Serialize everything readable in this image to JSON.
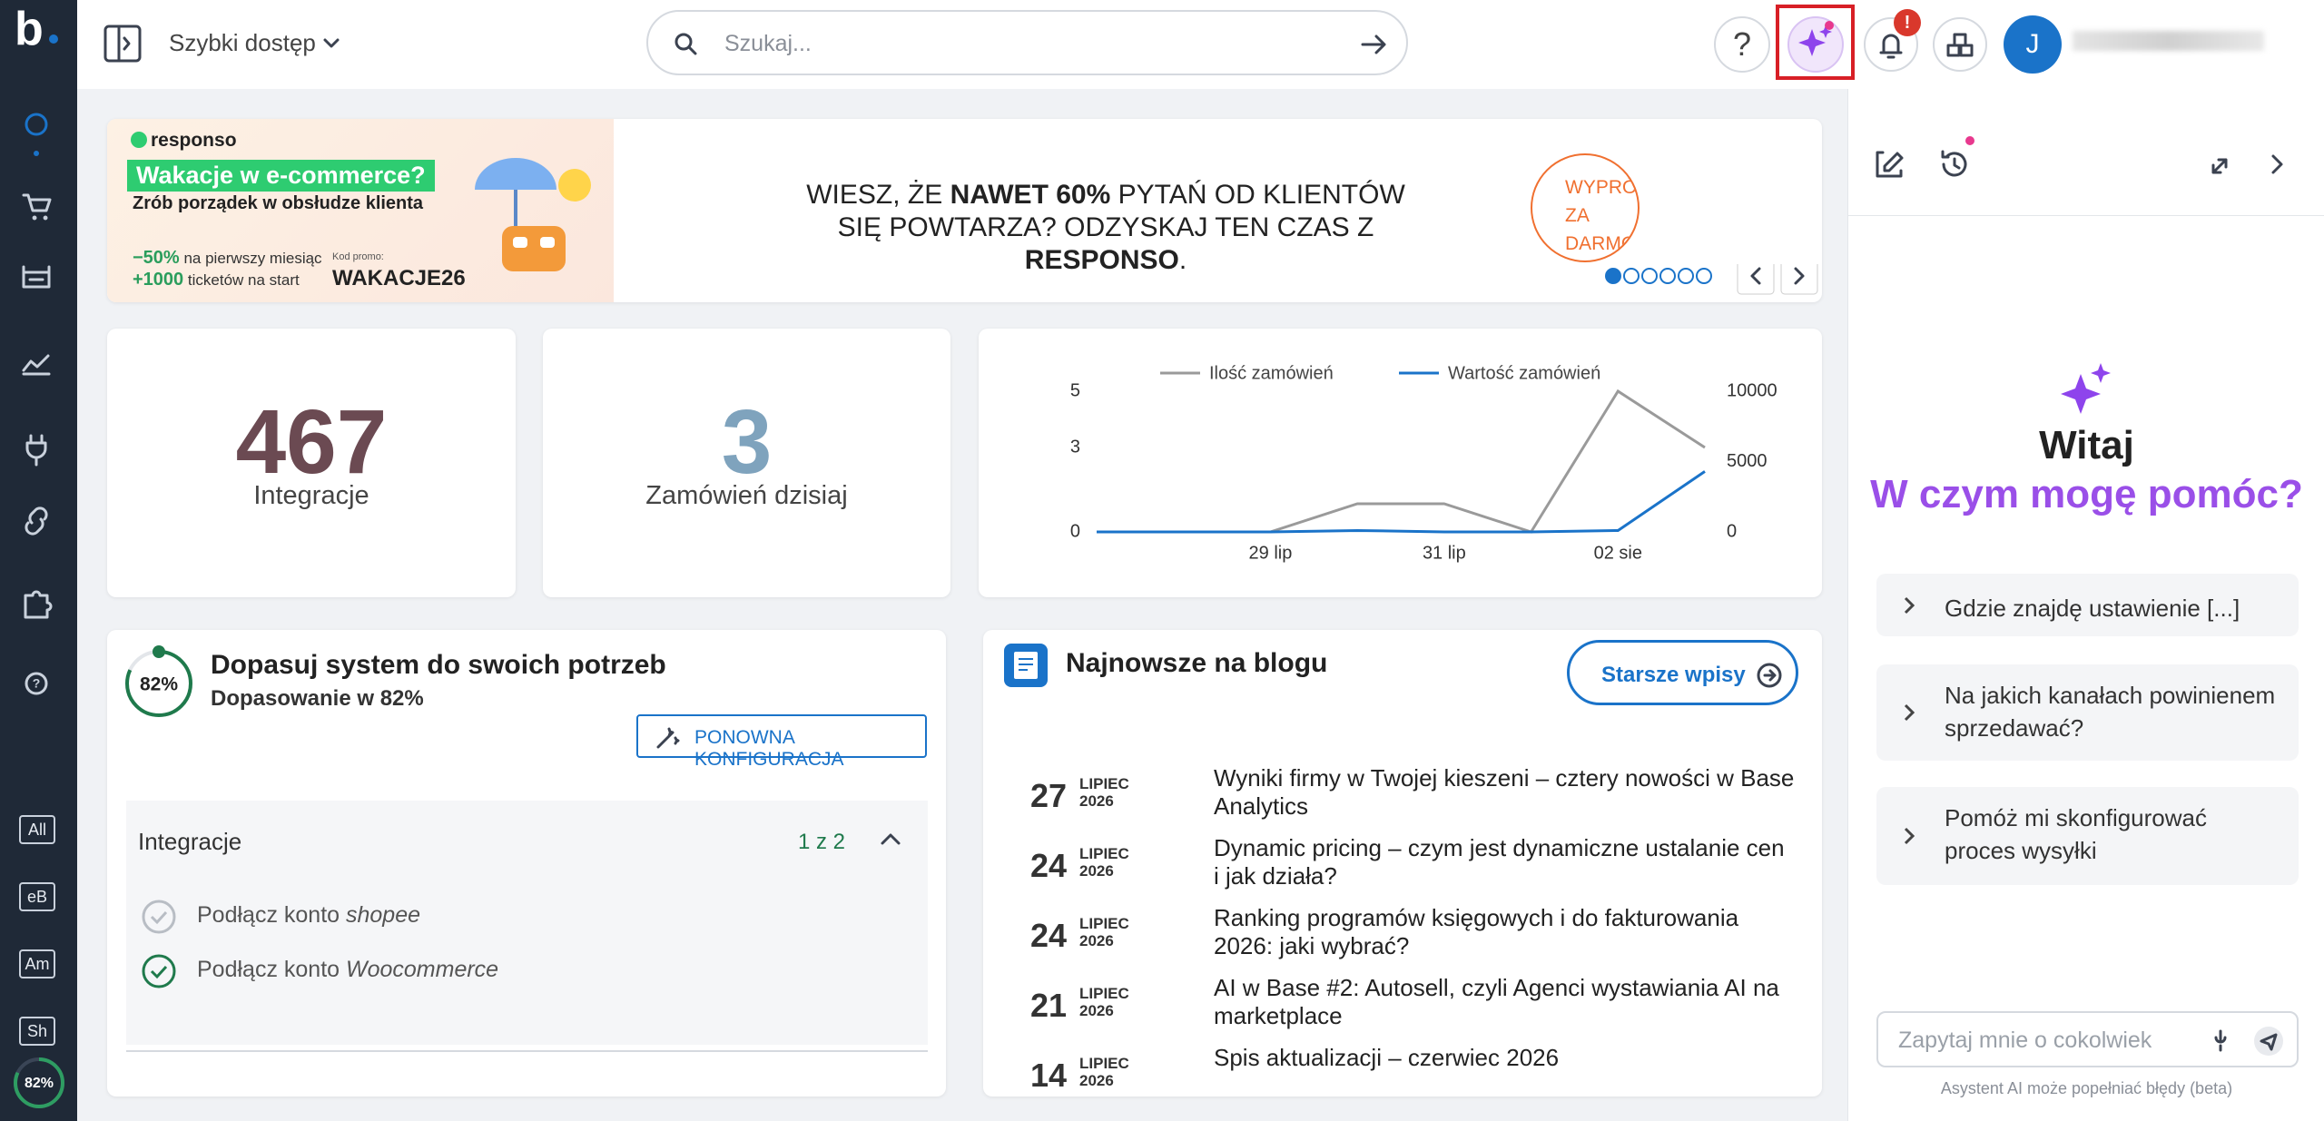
{
  "sidebar": {
    "logo": "b",
    "shortcuts": [
      "All",
      "eB",
      "Am",
      "Sh"
    ],
    "progress": "82%"
  },
  "topbar": {
    "quick_access": "Szybki dostęp",
    "search_placeholder": "Szukaj...",
    "help": "?",
    "notification_badge": "!",
    "user_initial": "J"
  },
  "banner": {
    "brand": "responso",
    "headline": "Wakacje w e-commerce?",
    "subheadline": "Zrób porządek w obsłudze klienta",
    "offer1_value": "−50%",
    "offer1_text": "na pierwszy miesiąc",
    "offer2_value": "+1000",
    "offer2_text": "ticketów na start",
    "promo_label": "Kod promo:",
    "promo_code": "WAKACJE26",
    "message": [
      {
        "text": "WIESZ, ŻE ",
        "bold": false
      },
      {
        "text": "NAWET 60%",
        "bold": true
      },
      {
        "text": " PYTAŃ OD KLIENTÓW SIĘ POWTARZA? ODZYSKAJ TEN CZAS Z ",
        "bold": false
      },
      {
        "text": "RESPONSO",
        "bold": true
      },
      {
        "text": ".",
        "bold": false
      }
    ],
    "cta": "WYPRÓBUJ ZA DARMO"
  },
  "stats": [
    {
      "value": 467,
      "label": "Integracje",
      "color": "#6b4a52"
    },
    {
      "value": 3,
      "label": "Zamówień dzisiaj",
      "color": "#7fa3bd"
    }
  ],
  "orders_chart": {
    "type": "line",
    "categories": [
      null,
      null,
      "29 lip",
      null,
      "31 lip",
      null,
      "02 sie",
      null
    ],
    "series": [
      {
        "name": "Ilość zamówień",
        "color": "#9a9a9a",
        "values": [
          0,
          0,
          0,
          1,
          1,
          0,
          5,
          3
        ]
      },
      {
        "name": "Wartość zamówień",
        "color": "#1a73c9",
        "axis": "y2",
        "values": [
          0,
          0,
          0,
          100,
          0,
          0,
          100,
          4300
        ]
      }
    ],
    "ylim": [
      0,
      5
    ],
    "yticks": [
      0,
      3,
      5
    ],
    "y2lim": [
      0,
      10000
    ],
    "y2ticks": [
      0,
      5000,
      10000
    ],
    "grid": false
  },
  "onboarding": {
    "progress": "82%",
    "title": "Dopasuj system do swoich potrzeb",
    "subtitle": "Dopasowanie w 82%",
    "button": "PONOWNA KONFIGURACJA",
    "section": "Integracje",
    "section_count": "1 z 2",
    "items": [
      {
        "prefix": "Podłącz konto ",
        "name": "shopee",
        "done": false
      },
      {
        "prefix": "Podłącz konto ",
        "name": "Woocommerce",
        "done": true
      }
    ]
  },
  "blog": {
    "title": "Najnowsze na blogu",
    "button": "Starsze wpisy",
    "posts": [
      {
        "day": 27,
        "month": "LIPIEC",
        "year": "2026",
        "title": "Wyniki firmy w Twojej kieszeni – cztery nowości w Base Analytics"
      },
      {
        "day": 24,
        "month": "LIPIEC",
        "year": "2026",
        "title": "Dynamic pricing – czym jest dynamiczne ustalanie cen i jak działa?"
      },
      {
        "day": 24,
        "month": "LIPIEC",
        "year": "2026",
        "title": "Ranking programów księgowych i do fakturowania 2026: jaki wybrać?"
      },
      {
        "day": 21,
        "month": "LIPIEC",
        "year": "2026",
        "title": "AI w Base #2: Autosell, czyli Agenci wystawiania AI na marketplace"
      },
      {
        "day": 14,
        "month": "LIPIEC",
        "year": "2026",
        "title": "Spis aktualizacji – czerwiec 2026"
      }
    ]
  },
  "assistant": {
    "greeting": "Witaj",
    "question": "W czym mogę pomóc?",
    "suggestions": [
      "Gdzie znajdę ustawienie [...]",
      "Na jakich kanałach powinienem sprzedawać?",
      "Pomóż mi skonfigurować proces wysyłki"
    ],
    "input_placeholder": "Zapytaj mnie o cokolwiek",
    "disclaimer": "Asystent AI może popełniać błędy (beta)"
  }
}
